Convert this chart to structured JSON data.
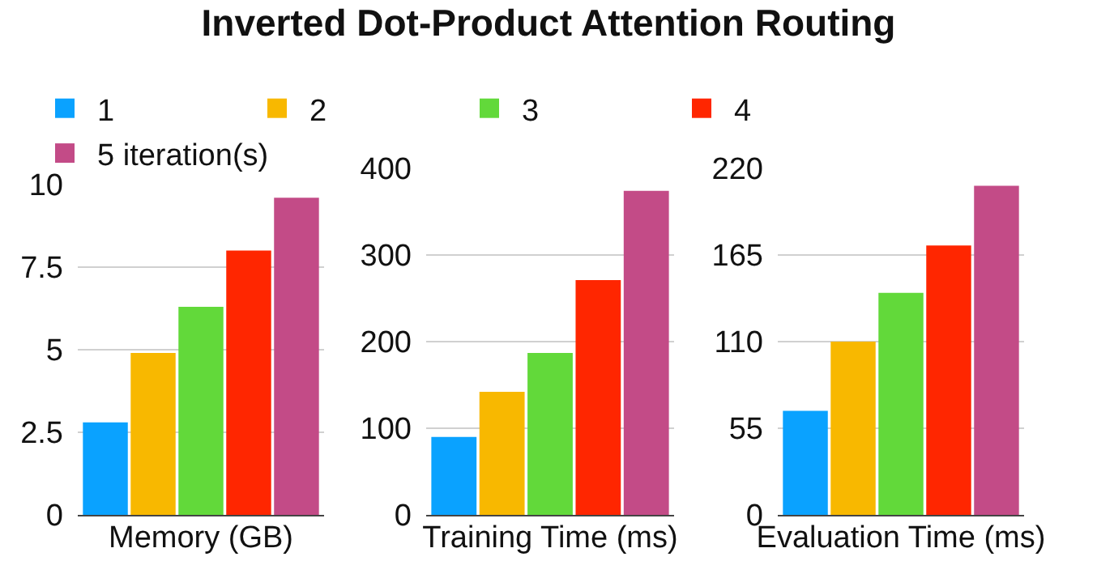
{
  "chart_data": [
    {
      "type": "bar",
      "title": "Inverted Dot-Product Attention Routing",
      "xlabel": "Memory (GB)",
      "categories": [
        null
      ],
      "legend": "top",
      "grid": "y",
      "tick_labels": "y",
      "ylim": [
        0,
        10
      ],
      "yticks": [
        0,
        2.5,
        5,
        7.5,
        10
      ],
      "series": [
        {
          "name": "1",
          "color": "#0aa2ff",
          "values": [
            2.8
          ]
        },
        {
          "name": "2",
          "color": "#f8b800",
          "values": [
            4.9
          ]
        },
        {
          "name": "3",
          "color": "#62d93a",
          "values": [
            6.3
          ]
        },
        {
          "name": "4",
          "color": "#ff2600",
          "values": [
            8.0
          ]
        },
        {
          "name": "5 iteration(s)",
          "color": "#c34b87",
          "values": [
            9.6
          ]
        }
      ]
    },
    {
      "type": "bar",
      "xlabel": "Training Time (ms)",
      "categories": [
        null
      ],
      "grid": "y",
      "tick_labels": "y",
      "ylim": [
        0,
        400
      ],
      "yticks": [
        0,
        100,
        200,
        300,
        400
      ],
      "series": [
        {
          "color": "#0aa2ff",
          "values": [
            90
          ]
        },
        {
          "color": "#f8b800",
          "values": [
            142
          ]
        },
        {
          "color": "#62d93a",
          "values": [
            187
          ]
        },
        {
          "color": "#ff2600",
          "values": [
            271
          ]
        },
        {
          "color": "#c34b87",
          "values": [
            374
          ]
        }
      ]
    },
    {
      "type": "bar",
      "xlabel": "Evaluation Time (ms)",
      "categories": [
        null
      ],
      "grid": "y",
      "tick_labels": "y",
      "ylim": [
        0,
        220
      ],
      "yticks": [
        0,
        55,
        110,
        165,
        220
      ],
      "series": [
        {
          "color": "#0aa2ff",
          "values": [
            66
          ]
        },
        {
          "color": "#f8b800",
          "values": [
            110
          ]
        },
        {
          "color": "#62d93a",
          "values": [
            141
          ]
        },
        {
          "color": "#ff2600",
          "values": [
            171
          ]
        },
        {
          "color": "#c34b87",
          "values": [
            209
          ]
        }
      ]
    }
  ]
}
